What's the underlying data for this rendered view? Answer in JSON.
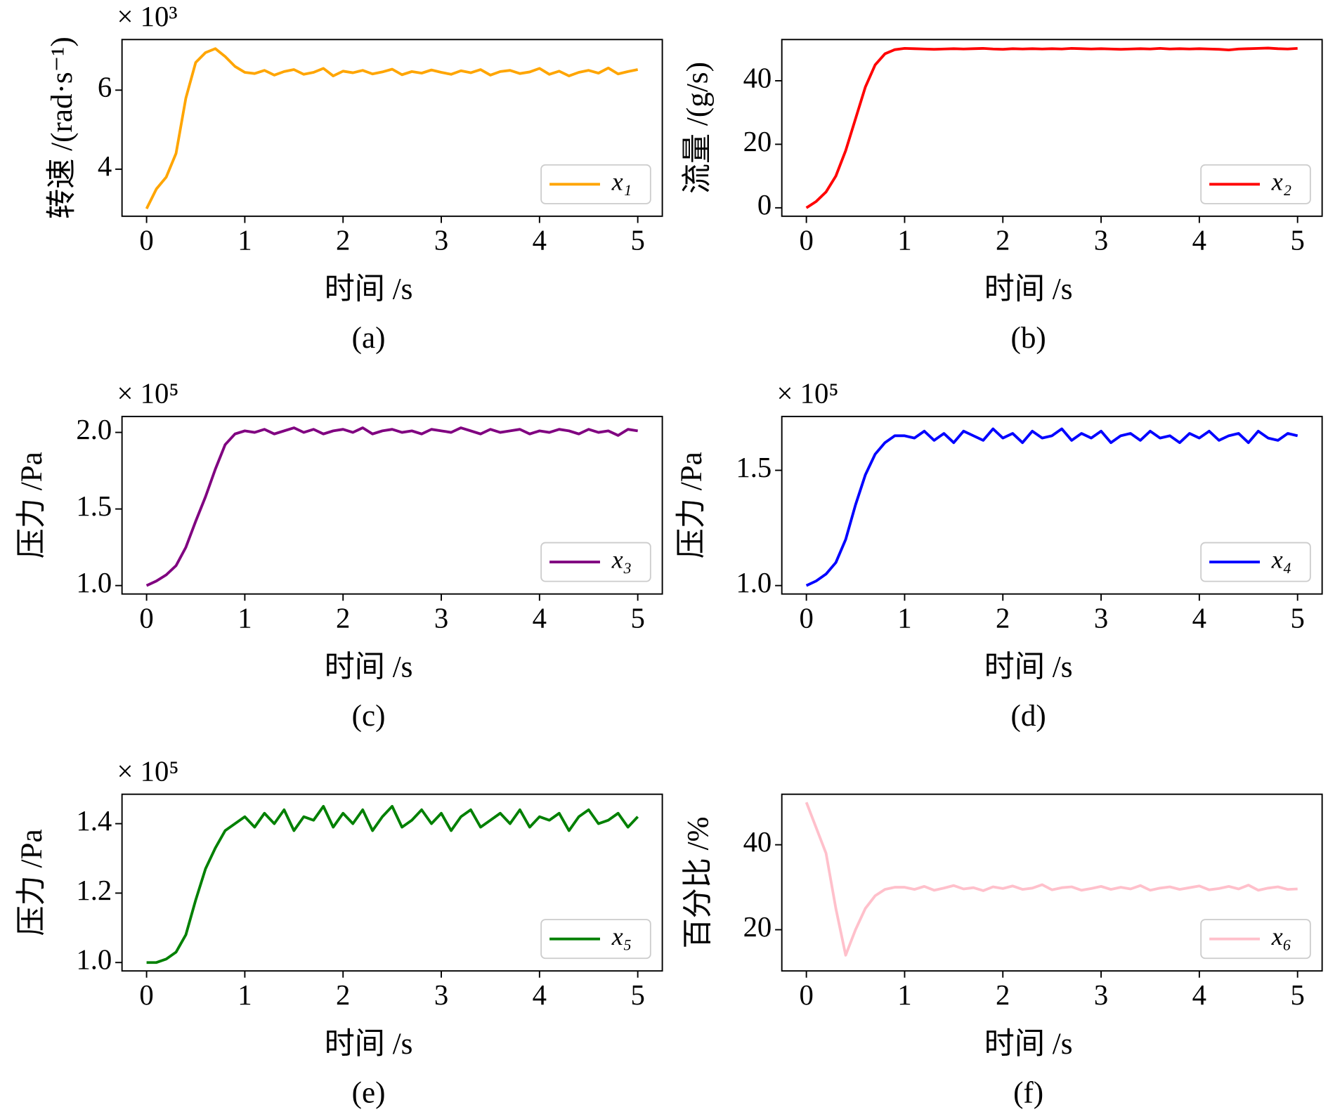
{
  "chart_data": [
    {
      "type": "line",
      "caption": "(a)",
      "x_label": "时间 /s",
      "y_label": "转速 /(rad·s⁻¹)",
      "offset_text": "× 10³",
      "xlim": [
        -0.25,
        5.25
      ],
      "xticks": [
        0,
        1,
        2,
        3,
        4,
        5
      ],
      "ylim": [
        2.81,
        7.28
      ],
      "yticks": [
        4,
        6
      ],
      "x": [
        0,
        0.1,
        0.2,
        0.3,
        0.4,
        0.5,
        0.6,
        0.7,
        0.8,
        0.9,
        1,
        1.1,
        1.2,
        1.3,
        1.4,
        1.5,
        1.6,
        1.7,
        1.8,
        1.9,
        2,
        2.1,
        2.2,
        2.3,
        2.4,
        2.5,
        2.6,
        2.7,
        2.8,
        2.9,
        3,
        3.1,
        3.2,
        3.3,
        3.4,
        3.5,
        3.6,
        3.7,
        3.8,
        3.9,
        4,
        4.1,
        4.2,
        4.3,
        4.4,
        4.5,
        4.6,
        4.7,
        4.8,
        4.9,
        5
      ],
      "series": [
        {
          "name": "x₁",
          "color": "#ffa500",
          "values": [
            3.0,
            3.5,
            3.8,
            4.4,
            5.8,
            6.7,
            6.95,
            7.05,
            6.85,
            6.6,
            6.45,
            6.42,
            6.5,
            6.38,
            6.47,
            6.52,
            6.4,
            6.45,
            6.55,
            6.36,
            6.48,
            6.44,
            6.5,
            6.41,
            6.46,
            6.53,
            6.39,
            6.47,
            6.43,
            6.51,
            6.45,
            6.4,
            6.49,
            6.44,
            6.52,
            6.38,
            6.47,
            6.5,
            6.42,
            6.46,
            6.55,
            6.4,
            6.48,
            6.36,
            6.45,
            6.5,
            6.43,
            6.56,
            6.41,
            6.47,
            6.52
          ]
        }
      ]
    },
    {
      "type": "line",
      "caption": "(b)",
      "x_label": "时间 /s",
      "y_label": "流量 /(g/s)",
      "xlim": [
        -0.25,
        5.25
      ],
      "xticks": [
        0,
        1,
        2,
        3,
        4,
        5
      ],
      "ylim": [
        -2.65,
        52.98
      ],
      "yticks": [
        0,
        20,
        40
      ],
      "x": [
        0,
        0.1,
        0.2,
        0.3,
        0.4,
        0.5,
        0.6,
        0.7,
        0.8,
        0.9,
        1,
        1.1,
        1.2,
        1.3,
        1.4,
        1.5,
        1.6,
        1.7,
        1.8,
        1.9,
        2,
        2.1,
        2.2,
        2.3,
        2.4,
        2.5,
        2.6,
        2.7,
        2.8,
        2.9,
        3,
        3.1,
        3.2,
        3.3,
        3.4,
        3.5,
        3.6,
        3.7,
        3.8,
        3.9,
        4,
        4.1,
        4.2,
        4.3,
        4.4,
        4.5,
        4.6,
        4.7,
        4.8,
        4.9,
        5
      ],
      "series": [
        {
          "name": "x₂",
          "color": "#ff0000",
          "values": [
            0,
            2,
            5,
            10,
            18,
            28,
            38,
            45,
            48.5,
            49.8,
            50.2,
            50.1,
            50,
            49.9,
            50,
            50.1,
            50,
            50.1,
            50.2,
            50,
            49.9,
            50.1,
            50,
            50.1,
            50,
            50.1,
            50,
            50.2,
            50.1,
            50,
            50.1,
            50,
            49.9,
            50,
            50.1,
            50,
            50.2,
            50,
            50.1,
            50,
            50.1,
            50,
            49.9,
            49.7,
            50,
            50.1,
            50.2,
            50.3,
            50.1,
            50,
            50.2
          ]
        }
      ]
    },
    {
      "type": "line",
      "caption": "(c)",
      "x_label": "时间 /s",
      "y_label": "压力 /Pa",
      "offset_text": "× 10⁵",
      "xlim": [
        -0.25,
        5.25
      ],
      "xticks": [
        0,
        1,
        2,
        3,
        4,
        5
      ],
      "ylim": [
        0.945,
        2.104
      ],
      "yticks": [
        {
          "value": 1,
          "label": "1.0"
        },
        {
          "value": 1.5,
          "label": "1.5"
        },
        {
          "value": 2,
          "label": "2.0"
        }
      ],
      "x": [
        0,
        0.1,
        0.2,
        0.3,
        0.4,
        0.5,
        0.6,
        0.7,
        0.8,
        0.9,
        1,
        1.1,
        1.2,
        1.3,
        1.4,
        1.5,
        1.6,
        1.7,
        1.8,
        1.9,
        2,
        2.1,
        2.2,
        2.3,
        2.4,
        2.5,
        2.6,
        2.7,
        2.8,
        2.9,
        3,
        3.1,
        3.2,
        3.3,
        3.4,
        3.5,
        3.6,
        3.7,
        3.8,
        3.9,
        4,
        4.1,
        4.2,
        4.3,
        4.4,
        4.5,
        4.6,
        4.7,
        4.8,
        4.9,
        5
      ],
      "series": [
        {
          "name": "x₃",
          "color": "#800080",
          "values": [
            1.0,
            1.03,
            1.07,
            1.13,
            1.25,
            1.42,
            1.58,
            1.76,
            1.92,
            1.99,
            2.01,
            2.0,
            2.02,
            1.99,
            2.01,
            2.03,
            2.0,
            2.02,
            1.99,
            2.01,
            2.02,
            2.0,
            2.03,
            1.99,
            2.01,
            2.02,
            2.0,
            2.01,
            1.99,
            2.02,
            2.01,
            2.0,
            2.03,
            2.01,
            1.99,
            2.02,
            2.0,
            2.01,
            2.02,
            1.99,
            2.01,
            2.0,
            2.02,
            2.01,
            1.99,
            2.02,
            2.0,
            2.01,
            1.98,
            2.02,
            2.01
          ]
        }
      ]
    },
    {
      "type": "line",
      "caption": "(d)",
      "x_label": "时间 /s",
      "y_label": "压力 /Pa",
      "offset_text": "× 10⁵",
      "xlim": [
        -0.25,
        5.25
      ],
      "xticks": [
        0,
        1,
        2,
        3,
        4,
        5
      ],
      "ylim": [
        0.9635,
        1.7336
      ],
      "yticks": [
        {
          "value": 1,
          "label": "1.0"
        },
        {
          "value": 1.5,
          "label": "1.5"
        }
      ],
      "x": [
        0,
        0.1,
        0.2,
        0.3,
        0.4,
        0.5,
        0.6,
        0.7,
        0.8,
        0.9,
        1,
        1.1,
        1.2,
        1.3,
        1.4,
        1.5,
        1.6,
        1.7,
        1.8,
        1.9,
        2,
        2.1,
        2.2,
        2.3,
        2.4,
        2.5,
        2.6,
        2.7,
        2.8,
        2.9,
        3,
        3.1,
        3.2,
        3.3,
        3.4,
        3.5,
        3.6,
        3.7,
        3.8,
        3.9,
        4,
        4.1,
        4.2,
        4.3,
        4.4,
        4.5,
        4.6,
        4.7,
        4.8,
        4.9,
        5
      ],
      "series": [
        {
          "name": "x₄",
          "color": "#0000ff",
          "values": [
            1.0,
            1.02,
            1.05,
            1.1,
            1.2,
            1.35,
            1.48,
            1.57,
            1.62,
            1.65,
            1.65,
            1.64,
            1.67,
            1.63,
            1.66,
            1.62,
            1.67,
            1.65,
            1.63,
            1.68,
            1.64,
            1.66,
            1.62,
            1.67,
            1.64,
            1.65,
            1.68,
            1.63,
            1.66,
            1.64,
            1.67,
            1.62,
            1.65,
            1.66,
            1.63,
            1.67,
            1.64,
            1.65,
            1.62,
            1.66,
            1.64,
            1.67,
            1.63,
            1.65,
            1.66,
            1.62,
            1.67,
            1.64,
            1.63,
            1.66,
            1.65
          ]
        }
      ]
    },
    {
      "type": "line",
      "caption": "(e)",
      "x_label": "时间 /s",
      "y_label": "压力 /Pa",
      "offset_text": "× 10⁵",
      "xlim": [
        -0.25,
        5.25
      ],
      "xticks": [
        0,
        1,
        2,
        3,
        4,
        5
      ],
      "ylim": [
        0.9758,
        1.4848
      ],
      "yticks": [
        {
          "value": 1,
          "label": "1.0"
        },
        1.2,
        1.4
      ],
      "x": [
        0,
        0.1,
        0.2,
        0.3,
        0.4,
        0.5,
        0.6,
        0.7,
        0.8,
        0.9,
        1,
        1.1,
        1.2,
        1.3,
        1.4,
        1.5,
        1.6,
        1.7,
        1.8,
        1.9,
        2,
        2.1,
        2.2,
        2.3,
        2.4,
        2.5,
        2.6,
        2.7,
        2.8,
        2.9,
        3,
        3.1,
        3.2,
        3.3,
        3.4,
        3.5,
        3.6,
        3.7,
        3.8,
        3.9,
        4,
        4.1,
        4.2,
        4.3,
        4.4,
        4.5,
        4.6,
        4.7,
        4.8,
        4.9,
        5
      ],
      "series": [
        {
          "name": "x₅",
          "color": "#008000",
          "values": [
            1.0,
            1.0,
            1.01,
            1.03,
            1.08,
            1.18,
            1.27,
            1.33,
            1.38,
            1.4,
            1.42,
            1.39,
            1.43,
            1.4,
            1.44,
            1.38,
            1.42,
            1.41,
            1.45,
            1.39,
            1.43,
            1.4,
            1.44,
            1.38,
            1.42,
            1.45,
            1.39,
            1.41,
            1.44,
            1.4,
            1.43,
            1.38,
            1.42,
            1.44,
            1.39,
            1.41,
            1.43,
            1.4,
            1.44,
            1.39,
            1.42,
            1.41,
            1.43,
            1.38,
            1.42,
            1.44,
            1.4,
            1.41,
            1.43,
            1.39,
            1.42
          ]
        }
      ]
    },
    {
      "type": "line",
      "caption": "(f)",
      "x_label": "时间 /s",
      "y_label": "百分比 /%",
      "xlim": [
        -0.25,
        5.25
      ],
      "xticks": [
        0,
        1,
        2,
        3,
        4,
        5
      ],
      "ylim": [
        10.3,
        51.9
      ],
      "yticks": [
        20,
        40
      ],
      "x": [
        0,
        0.1,
        0.2,
        0.3,
        0.4,
        0.5,
        0.6,
        0.7,
        0.8,
        0.9,
        1,
        1.1,
        1.2,
        1.3,
        1.4,
        1.5,
        1.6,
        1.7,
        1.8,
        1.9,
        2,
        2.1,
        2.2,
        2.3,
        2.4,
        2.5,
        2.6,
        2.7,
        2.8,
        2.9,
        3,
        3.1,
        3.2,
        3.3,
        3.4,
        3.5,
        3.6,
        3.7,
        3.8,
        3.9,
        4,
        4.1,
        4.2,
        4.3,
        4.4,
        4.5,
        4.6,
        4.7,
        4.8,
        4.9,
        5
      ],
      "series": [
        {
          "name": "x₆",
          "color": "#ffc0cb",
          "values": [
            50,
            44,
            38,
            25,
            14,
            20,
            25,
            28,
            29.5,
            30,
            30,
            29.5,
            30.2,
            29.3,
            29.8,
            30.4,
            29.6,
            29.9,
            29.2,
            30.1,
            29.7,
            30.3,
            29.5,
            29.8,
            30.6,
            29.4,
            29.9,
            30.1,
            29.3,
            29.7,
            30.2,
            29.5,
            30,
            29.6,
            30.4,
            29.3,
            29.8,
            30.1,
            29.5,
            29.9,
            30.3,
            29.4,
            29.7,
            30.2,
            29.6,
            30.5,
            29.3,
            29.8,
            30.1,
            29.5,
            29.6
          ]
        }
      ]
    }
  ]
}
